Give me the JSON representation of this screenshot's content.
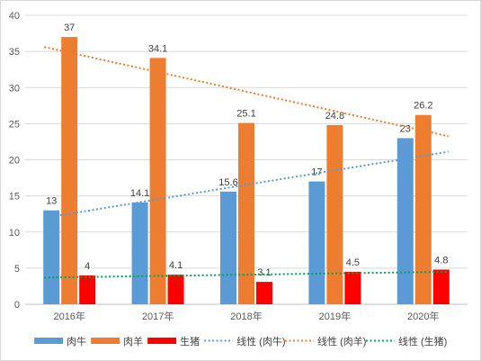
{
  "chart_data": {
    "type": "bar",
    "categories": [
      "2016年",
      "2017年",
      "2018年",
      "2019年",
      "2020年"
    ],
    "series": [
      {
        "name": "肉牛",
        "values": [
          13,
          14.1,
          15.6,
          17,
          23
        ],
        "color": "#5b9bd5"
      },
      {
        "name": "肉羊",
        "values": [
          37,
          34.1,
          25.1,
          24.8,
          26.2
        ],
        "color": "#ed7d31"
      },
      {
        "name": "生猪",
        "values": [
          4,
          4.1,
          3.1,
          4.5,
          4.8
        ],
        "color": "#ff0000"
      }
    ],
    "trendlines": [
      {
        "name": "线性 (肉牛)",
        "series": "肉牛",
        "type": "linear",
        "color": "#5b9bd5",
        "style": "dotted"
      },
      {
        "name": "线性 (肉羊)",
        "series": "肉羊",
        "type": "linear",
        "color": "#ed7d31",
        "style": "dotted"
      },
      {
        "name": "线性 (生猪)",
        "series": "生猪",
        "type": "linear",
        "color": "#00a550",
        "style": "dotted"
      }
    ],
    "ylim": [
      0,
      40
    ],
    "yticks": [
      0,
      5,
      10,
      15,
      20,
      25,
      30,
      35,
      40
    ],
    "grid": true,
    "legend_position": "bottom",
    "data_labels": true
  }
}
